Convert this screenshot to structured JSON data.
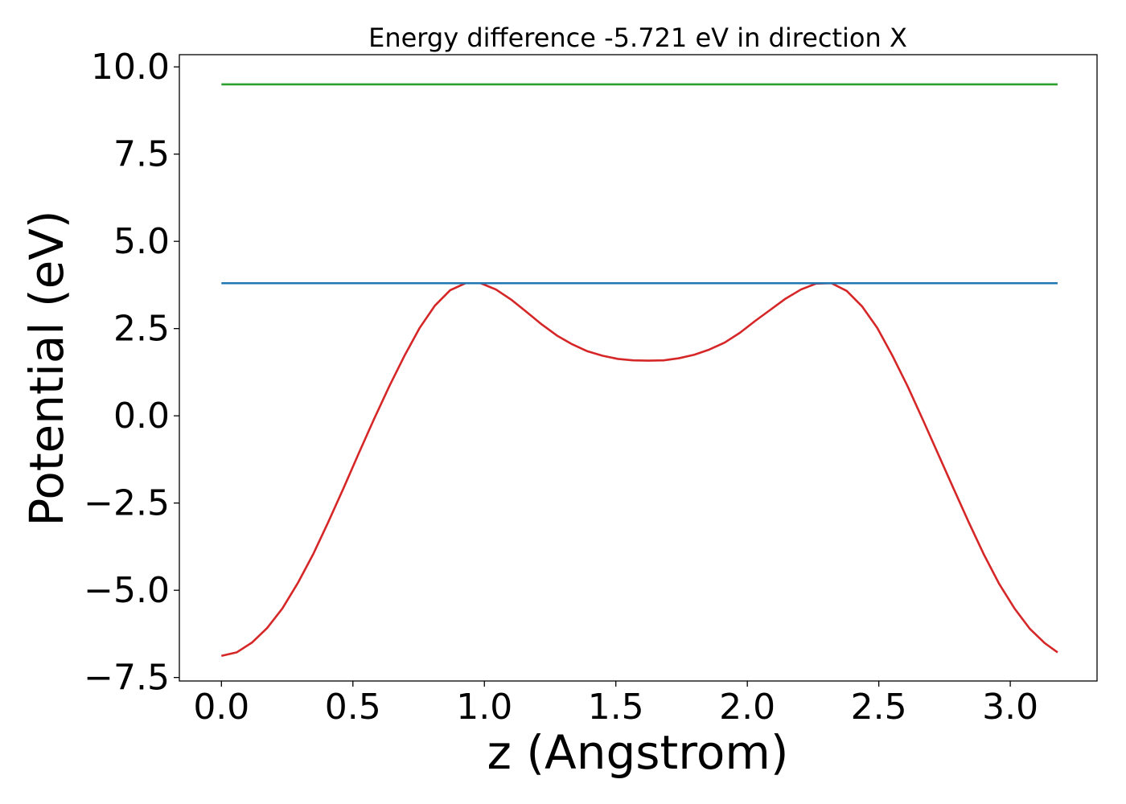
{
  "chart_data": {
    "type": "line",
    "title": "Energy difference -5.721 eV in direction X",
    "xlabel": "z (Angstrom)",
    "ylabel": "Potential (eV)",
    "xlim": [
      -0.16,
      3.33
    ],
    "ylim": [
      -7.6,
      10.35
    ],
    "xticks": [
      0.0,
      0.5,
      1.0,
      1.5,
      2.0,
      2.5,
      3.0
    ],
    "xtick_labels": [
      "0.0",
      "0.5",
      "1.0",
      "1.5",
      "2.0",
      "2.5",
      "3.0"
    ],
    "yticks": [
      -7.5,
      -5.0,
      -2.5,
      0.0,
      2.5,
      5.0,
      7.5,
      10.0
    ],
    "ytick_labels": [
      "−7.5",
      "−5.0",
      "−2.5",
      "0.0",
      "2.5",
      "5.0",
      "7.5",
      "10.0"
    ],
    "grid": false,
    "series": [
      {
        "color": "#d62728",
        "x": [
          0.0,
          0.058,
          0.116,
          0.174,
          0.232,
          0.29,
          0.348,
          0.406,
          0.464,
          0.522,
          0.58,
          0.638,
          0.696,
          0.754,
          0.812,
          0.87,
          0.928,
          0.986,
          1.044,
          1.102,
          1.16,
          1.218,
          1.276,
          1.334,
          1.392,
          1.45,
          1.508,
          1.566,
          1.624,
          1.682,
          1.74,
          1.798,
          1.856,
          1.914,
          1.972,
          2.03,
          2.088,
          2.146,
          2.204,
          2.262,
          2.32,
          2.378,
          2.436,
          2.494,
          2.552,
          2.61,
          2.668,
          2.726,
          2.784,
          2.842,
          2.9,
          2.958,
          3.016,
          3.074,
          3.132,
          3.18
        ],
        "y": [
          -6.88,
          -6.78,
          -6.5,
          -6.08,
          -5.52,
          -4.8,
          -3.98,
          -3.05,
          -2.08,
          -1.08,
          -0.1,
          0.84,
          1.72,
          2.52,
          3.16,
          3.6,
          3.8,
          3.8,
          3.62,
          3.33,
          2.98,
          2.62,
          2.3,
          2.05,
          1.85,
          1.72,
          1.63,
          1.59,
          1.58,
          1.59,
          1.65,
          1.75,
          1.9,
          2.1,
          2.38,
          2.72,
          3.04,
          3.36,
          3.62,
          3.79,
          3.8,
          3.58,
          3.14,
          2.52,
          1.72,
          0.84,
          -0.12,
          -1.1,
          -2.08,
          -3.05,
          -3.98,
          -4.82,
          -5.52,
          -6.1,
          -6.52,
          -6.78
        ]
      },
      {
        "color": "#1f77b4",
        "x": [
          0.0,
          3.18
        ],
        "y": [
          3.8,
          3.8
        ]
      },
      {
        "color": "#2ca02c",
        "x": [
          0.0,
          3.18
        ],
        "y": [
          9.5,
          9.5
        ]
      }
    ]
  }
}
